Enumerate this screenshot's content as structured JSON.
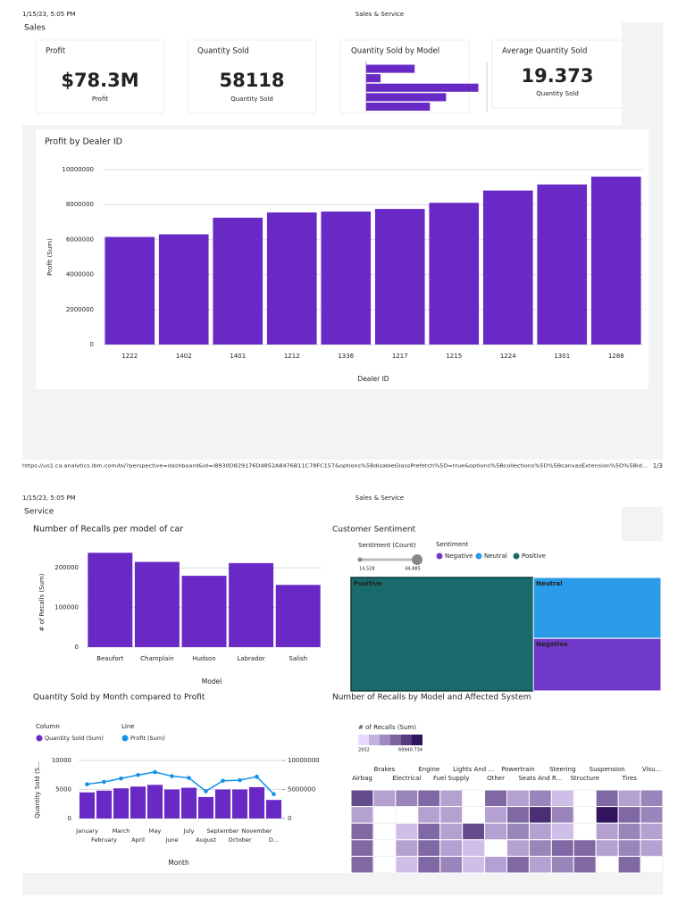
{
  "pages": [
    {
      "date": "1/15/23, 5:05 PM",
      "title": "Sales & Service",
      "section": "Sales",
      "url": "https://us1.ca.analytics.ibm.com/bi/?perspective=dashboard&id=i8930D829176D4852A8476B11C78FC157&options%5BdisableGlassPrefetch%5D=true&options%5Bcollections%5D%5BcanvasExtension%5D%5Bid...",
      "page_number": "1/3"
    },
    {
      "date": "1/15/23, 5:05 PM",
      "title": "Sales & Service",
      "section": "Service"
    }
  ],
  "kpis": [
    {
      "title": "Profit",
      "value": "$78.3M",
      "label": "Profit"
    },
    {
      "title": "Quantity Sold",
      "value": "58118",
      "label": "Quantity Sold"
    },
    {
      "title": "Average Quantity Sold",
      "value": "19.373",
      "label": "Quantity Sold"
    }
  ],
  "chart_data": [
    {
      "type": "hbar",
      "title": "Quantity Sold by Model",
      "values": [
        8840,
        2620,
        20460,
        14570,
        11620
      ],
      "color": "#6929c4",
      "xlim": [
        0,
        22000
      ]
    },
    {
      "type": "bar",
      "title": "Profit by Dealer ID",
      "x_label": "Dealer ID",
      "y_label": "Profit (Sum)",
      "categories": [
        "1222",
        "1402",
        "1401",
        "1212",
        "1336",
        "1217",
        "1215",
        "1224",
        "1301",
        "1288"
      ],
      "values": [
        6150000,
        6300000,
        7250000,
        7550000,
        7600000,
        7750000,
        8100000,
        8800000,
        9150000,
        9600000
      ],
      "color": "#6929c4",
      "ylim": [
        0,
        10000000
      ],
      "yticks": [
        0,
        2000000,
        4000000,
        6000000,
        8000000,
        10000000
      ],
      "grid": true
    },
    {
      "type": "bar",
      "title": "Number of Recalls per model of car",
      "x_label": "Model",
      "y_label": "# of Recalls (Sum)",
      "categories": [
        "Beaufort",
        "Champlain",
        "Hudson",
        "Labrador",
        "Salish"
      ],
      "values": [
        238000,
        215000,
        180000,
        212000,
        157000
      ],
      "color": "#6929c4",
      "ylim": [
        0,
        250000
      ],
      "yticks": [
        0,
        100000,
        200000
      ],
      "grid": true
    },
    {
      "type": "treemap",
      "title": "Customer Sentiment",
      "size_legend_title": "Sentiment (Count)",
      "size_range": [
        {
          "value": 14528,
          "label": "14,528"
        },
        {
          "value": 44885,
          "label": "44,885"
        }
      ],
      "legend_title": "Sentiment",
      "legend_order": [
        "Negative",
        "Neutral",
        "Positive"
      ],
      "categories": [
        "Positive",
        "Neutral",
        "Negative"
      ],
      "values": [
        44885,
        16870,
        14528
      ],
      "colors": {
        "Positive": "#196a6a",
        "Neutral": "#2a9be6",
        "Negative": "#7139c9"
      }
    },
    {
      "type": "combo",
      "title": "Quantity Sold by Month compared to Profit",
      "x_label": "Month",
      "y_label": "Quantity Sold (S...",
      "categories": [
        "January",
        "February",
        "March",
        "April",
        "May",
        "June",
        "July",
        "August",
        "September",
        "October",
        "November",
        "D..."
      ],
      "series": [
        {
          "name": "Quantity Sold (Sum)",
          "legend_group": "Column",
          "color": "#6929c4",
          "values": [
            4500,
            4800,
            5200,
            5500,
            5800,
            5000,
            5300,
            3700,
            5000,
            5000,
            5400,
            3200
          ]
        },
        {
          "name": "Profit (Sum)",
          "legend_group": "Line",
          "color": "#1192e8",
          "axis": "y2",
          "values": [
            5900000,
            6300000,
            6900000,
            7500000,
            8000000,
            7300000,
            7000000,
            4700000,
            6500000,
            6600000,
            7200000,
            4200000
          ]
        }
      ],
      "ylim": [
        0,
        10000
      ],
      "yticks": [
        0,
        5000,
        10000
      ],
      "y2lim": [
        0,
        10000000
      ],
      "y2ticks": [
        0,
        5000000,
        10000000
      ],
      "grid": true
    },
    {
      "type": "heatmap",
      "title": "Number of Recalls by Model and Affected System",
      "legend_title": "# of Recalls (Sum)",
      "color_range": [
        2932,
        69940.734
      ],
      "colors": [
        "#e8daff",
        "#31135e"
      ],
      "categories": [
        "Airbag",
        "Brakes",
        "Electrical",
        "Engine",
        "Fuel Supply",
        "Lights And ...",
        "Other",
        "Powertrain",
        "Seats And R...",
        "Steering",
        "Structure",
        "Suspension",
        "Tires",
        "Visu..."
      ],
      "values": [
        [
          50800,
          22100,
          31650,
          41200,
          22100,
          null,
          41200,
          22100,
          31650,
          12500,
          null,
          41200,
          22100,
          31650
        ],
        [
          22100,
          null,
          null,
          22100,
          22100,
          null,
          22100,
          41200,
          60400,
          31650,
          null,
          69940.734,
          41200,
          31650
        ],
        [
          41200,
          null,
          12500,
          41200,
          22100,
          50800,
          22100,
          31650,
          22100,
          12500,
          null,
          22100,
          31650,
          22100
        ],
        [
          41200,
          null,
          22100,
          41200,
          22100,
          12500,
          null,
          22100,
          31650,
          41200,
          41200,
          22100,
          31650,
          22100
        ],
        [
          41200,
          null,
          12500,
          41200,
          31650,
          12500,
          22100,
          41200,
          22100,
          31650,
          41200,
          null,
          41200,
          null
        ]
      ]
    }
  ]
}
